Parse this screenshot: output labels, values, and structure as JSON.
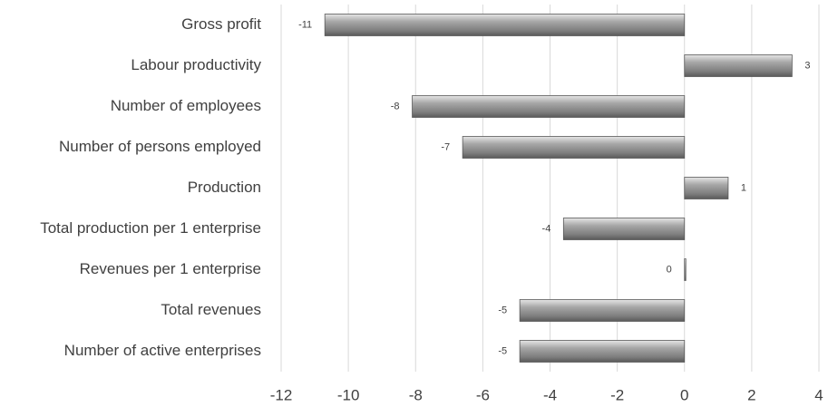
{
  "chart_data": {
    "type": "bar",
    "orientation": "horizontal",
    "categories": [
      "Gross profit",
      "Labour productivity",
      "Number of employees",
      "Number of persons employed",
      "Production",
      "Total production per 1 enterprise",
      "Revenues per 1 enterprise",
      "Total revenues",
      "Number of active enterprises"
    ],
    "values": [
      -10.7,
      3.2,
      -8.1,
      -6.6,
      1.3,
      -3.6,
      0,
      -4.9,
      -4.9
    ],
    "value_labels": [
      "-11",
      "3",
      "-8",
      "-7",
      "1",
      "-4",
      "0",
      "-5",
      "-5"
    ],
    "color": "#8c8c8c",
    "xlim": [
      -12,
      4
    ],
    "xticks": [
      -12,
      -10,
      -8,
      -6,
      -4,
      -2,
      0,
      2,
      4
    ],
    "grid": true
  }
}
